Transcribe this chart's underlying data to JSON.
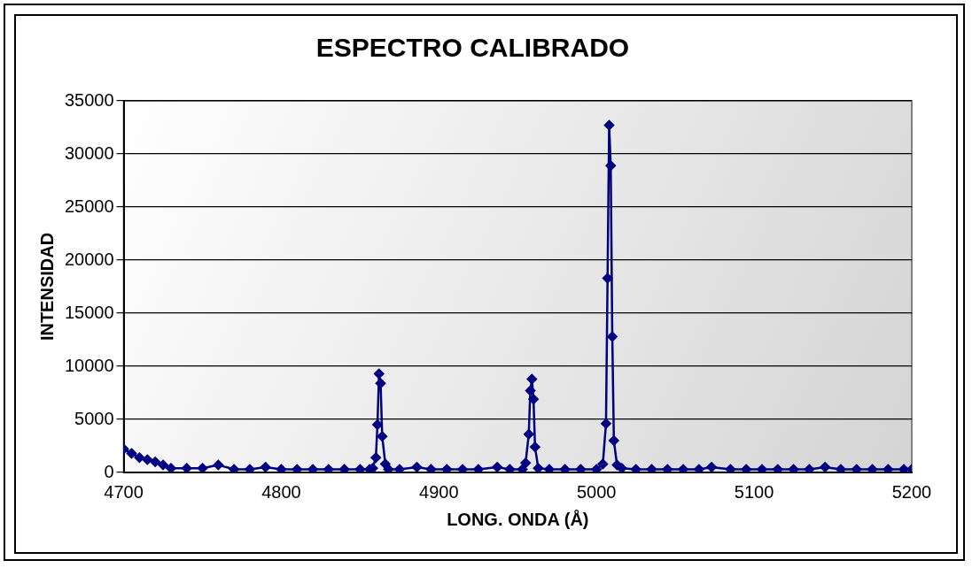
{
  "chart_data": {
    "type": "line",
    "title": "ESPECTRO CALIBRADO",
    "xlabel": "LONG. ONDA (Å)",
    "ylabel": "INTENSIDAD",
    "xlim": [
      4700,
      5200
    ],
    "xticks": [
      4700,
      4800,
      4900,
      5000,
      5100,
      5200
    ],
    "ylim": [
      0,
      35000
    ],
    "yticks": [
      0,
      5000,
      10000,
      15000,
      20000,
      25000,
      30000,
      35000
    ],
    "grid": "y",
    "legend": false,
    "marker": "diamond",
    "line_style": "solid",
    "series": [
      {
        "color": "#000080",
        "x": [
          4700,
          4705,
          4710,
          4715,
          4720,
          4725,
          4730,
          4740,
          4750,
          4760,
          4770,
          4780,
          4790,
          4800,
          4810,
          4820,
          4830,
          4840,
          4850,
          4856,
          4858,
          4860,
          4861,
          4862,
          4863,
          4864,
          4866,
          4868,
          4875,
          4886,
          4895,
          4905,
          4915,
          4925,
          4937,
          4945,
          4953,
          4955,
          4957,
          4958,
          4959,
          4960,
          4961,
          4963,
          4970,
          4980,
          4990,
          5000,
          5004,
          5006,
          5007,
          5008,
          5009,
          5010,
          5011,
          5013,
          5016,
          5025,
          5035,
          5045,
          5055,
          5065,
          5073,
          5085,
          5095,
          5105,
          5115,
          5125,
          5135,
          5145,
          5155,
          5165,
          5175,
          5185,
          5195,
          5200
        ],
        "values": [
          2200,
          1800,
          1400,
          1200,
          1000,
          700,
          400,
          400,
          400,
          700,
          300,
          300,
          500,
          300,
          300,
          300,
          300,
          300,
          300,
          300,
          400,
          1400,
          4500,
          9300,
          8400,
          3400,
          800,
          300,
          300,
          500,
          300,
          300,
          300,
          300,
          500,
          300,
          300,
          900,
          3600,
          7700,
          8800,
          6900,
          2400,
          400,
          300,
          300,
          300,
          300,
          800,
          4600,
          18300,
          32700,
          28900,
          12800,
          3000,
          700,
          400,
          300,
          300,
          300,
          300,
          300,
          500,
          300,
          300,
          300,
          300,
          300,
          300,
          500,
          300,
          300,
          300,
          300,
          300,
          300
        ]
      }
    ]
  }
}
